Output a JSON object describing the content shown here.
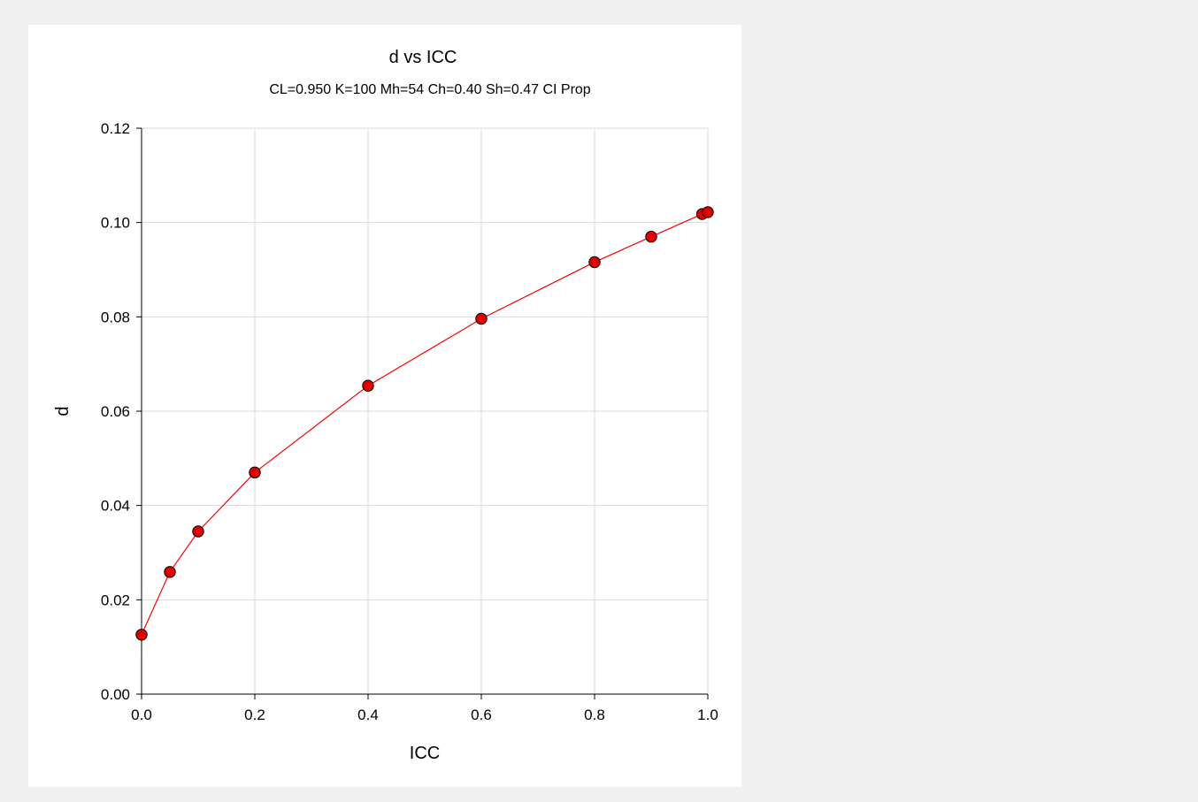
{
  "chart_data": {
    "type": "scatter",
    "title": "d vs ICC",
    "subtitle": "CL=0.950 K=100 Mh=54 Ch=0.40 Sh=0.47 CI Prop",
    "xlabel": "ICC",
    "ylabel": "d",
    "xlim": [
      0.0,
      1.0
    ],
    "ylim": [
      0.0,
      0.12
    ],
    "xticks": [
      "0.0",
      "0.2",
      "0.4",
      "0.6",
      "0.8",
      "1.0"
    ],
    "yticks": [
      "0.00",
      "0.02",
      "0.04",
      "0.06",
      "0.08",
      "0.10",
      "0.12"
    ],
    "grid": true,
    "connected": true,
    "series": [
      {
        "x": [
          0.0,
          0.05,
          0.1,
          0.2,
          0.4,
          0.6,
          0.8,
          0.9,
          0.99,
          1.0
        ],
        "y": [
          0.0126,
          0.0259,
          0.0345,
          0.047,
          0.0654,
          0.0796,
          0.0916,
          0.097,
          0.1018,
          0.1022
        ]
      }
    ],
    "colors": {
      "line": "#ff0000",
      "marker_fill": "#e00000",
      "marker_edge": "#000000",
      "grid": "#d9d9d9",
      "axis": "#000000"
    }
  }
}
